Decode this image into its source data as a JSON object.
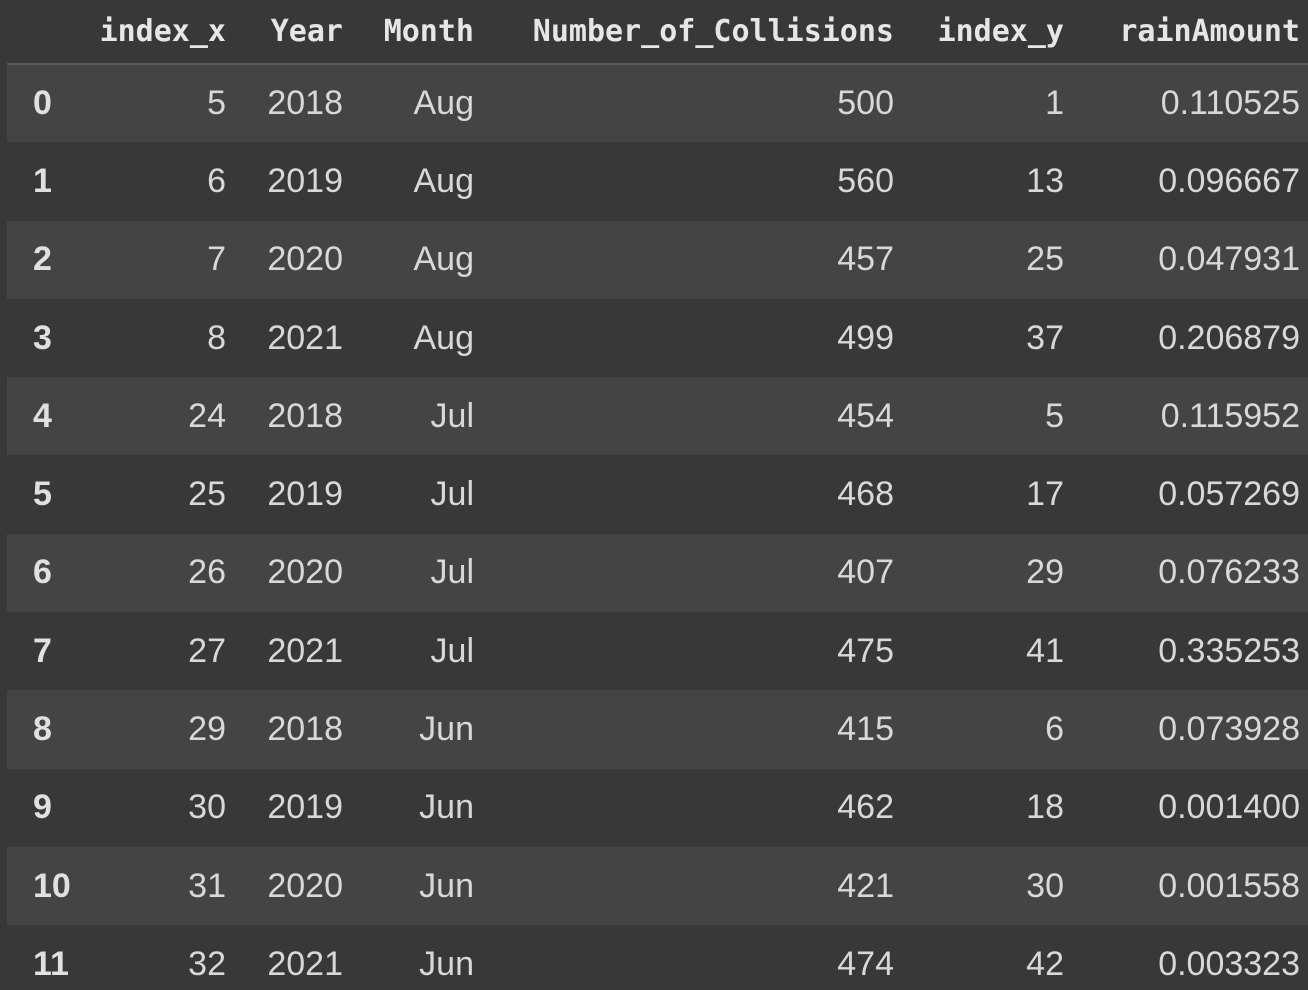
{
  "table": {
    "columns": [
      "",
      "index_x",
      "Year",
      "Month",
      "Number_of_Collisions",
      "index_y",
      "rainAmount"
    ],
    "rows": [
      {
        "idx": "0",
        "index_x": "5",
        "year": "2018",
        "month": "Aug",
        "collisions": "500",
        "index_y": "1",
        "rain": "0.110525"
      },
      {
        "idx": "1",
        "index_x": "6",
        "year": "2019",
        "month": "Aug",
        "collisions": "560",
        "index_y": "13",
        "rain": "0.096667"
      },
      {
        "idx": "2",
        "index_x": "7",
        "year": "2020",
        "month": "Aug",
        "collisions": "457",
        "index_y": "25",
        "rain": "0.047931"
      },
      {
        "idx": "3",
        "index_x": "8",
        "year": "2021",
        "month": "Aug",
        "collisions": "499",
        "index_y": "37",
        "rain": "0.206879"
      },
      {
        "idx": "4",
        "index_x": "24",
        "year": "2018",
        "month": "Jul",
        "collisions": "454",
        "index_y": "5",
        "rain": "0.115952"
      },
      {
        "idx": "5",
        "index_x": "25",
        "year": "2019",
        "month": "Jul",
        "collisions": "468",
        "index_y": "17",
        "rain": "0.057269"
      },
      {
        "idx": "6",
        "index_x": "26",
        "year": "2020",
        "month": "Jul",
        "collisions": "407",
        "index_y": "29",
        "rain": "0.076233"
      },
      {
        "idx": "7",
        "index_x": "27",
        "year": "2021",
        "month": "Jul",
        "collisions": "475",
        "index_y": "41",
        "rain": "0.335253"
      },
      {
        "idx": "8",
        "index_x": "29",
        "year": "2018",
        "month": "Jun",
        "collisions": "415",
        "index_y": "6",
        "rain": "0.073928"
      },
      {
        "idx": "9",
        "index_x": "30",
        "year": "2019",
        "month": "Jun",
        "collisions": "462",
        "index_y": "18",
        "rain": "0.001400"
      },
      {
        "idx": "10",
        "index_x": "31",
        "year": "2020",
        "month": "Jun",
        "collisions": "421",
        "index_y": "30",
        "rain": "0.001558"
      },
      {
        "idx": "11",
        "index_x": "32",
        "year": "2021",
        "month": "Jun",
        "collisions": "474",
        "index_y": "42",
        "rain": "0.003323"
      }
    ]
  },
  "colors": {
    "background": "#383838",
    "row_stripe": "#444444",
    "text": "#d8d8d8"
  }
}
